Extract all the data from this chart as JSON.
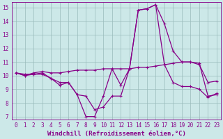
{
  "xlabel": "Windchill (Refroidissement éolien,°C)",
  "bg_color": "#cce8e8",
  "line_color": "#880088",
  "grid_color": "#99bbbb",
  "xlim": [
    -0.5,
    23.5
  ],
  "ylim": [
    6.8,
    15.4
  ],
  "xticks": [
    0,
    1,
    2,
    3,
    4,
    5,
    6,
    7,
    8,
    9,
    10,
    11,
    12,
    13,
    14,
    15,
    16,
    17,
    18,
    19,
    20,
    21,
    22,
    23
  ],
  "yticks": [
    7,
    8,
    9,
    10,
    11,
    12,
    13,
    14,
    15
  ],
  "line1": [
    10.2,
    10.1,
    10.1,
    10.1,
    9.8,
    9.5,
    9.5,
    8.6,
    7.0,
    7.0,
    8.5,
    10.5,
    9.3,
    10.5,
    14.8,
    14.9,
    15.2,
    13.8,
    11.8,
    11.0,
    11.0,
    10.9,
    8.5,
    8.6
  ],
  "line2": [
    10.2,
    10.0,
    10.1,
    10.2,
    9.8,
    9.3,
    9.5,
    8.6,
    8.5,
    7.5,
    7.7,
    8.5,
    8.5,
    10.5,
    14.8,
    14.9,
    15.2,
    10.8,
    9.5,
    9.2,
    9.2,
    9.0,
    8.4,
    8.7
  ],
  "line3": [
    10.2,
    10.0,
    10.2,
    10.3,
    10.2,
    10.2,
    10.3,
    10.4,
    10.4,
    10.4,
    10.5,
    10.5,
    10.5,
    10.5,
    10.6,
    10.6,
    10.7,
    10.8,
    10.9,
    11.0,
    11.0,
    10.8,
    9.5,
    9.6
  ],
  "tick_fontsize": 5.5,
  "label_fontsize": 6.5,
  "linewidth": 0.9,
  "markersize": 2.5
}
